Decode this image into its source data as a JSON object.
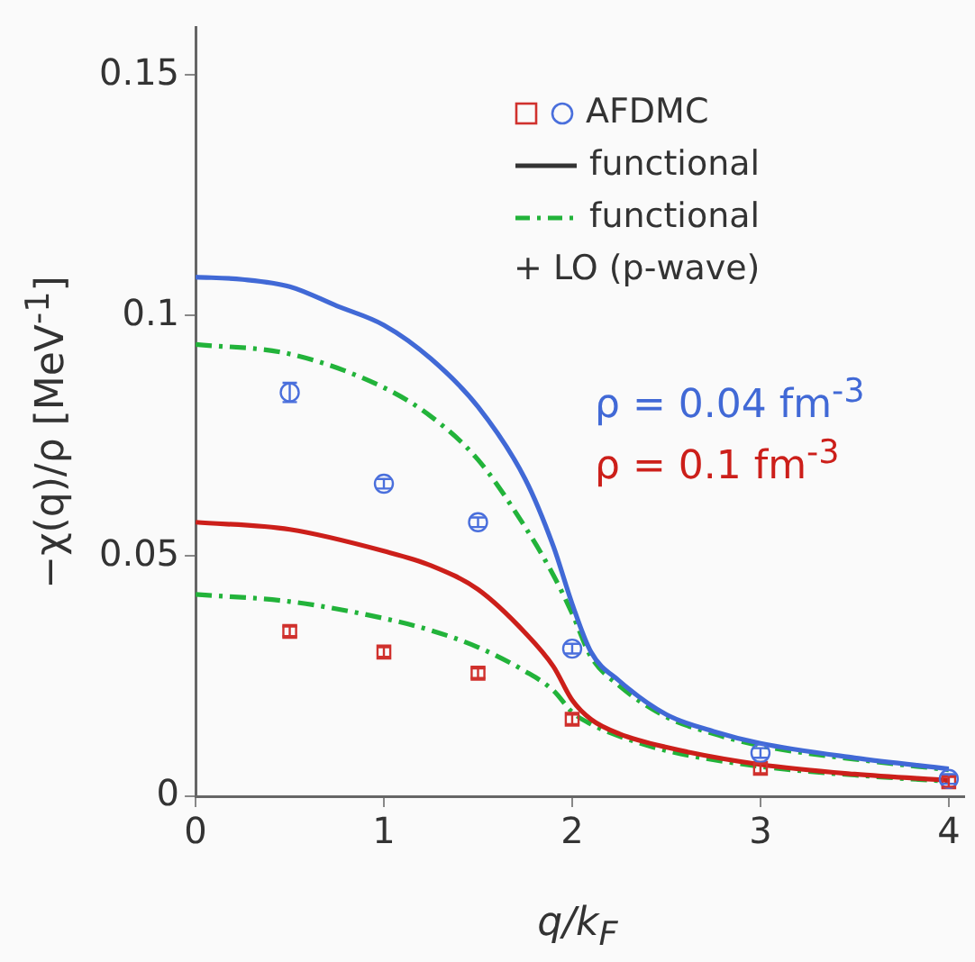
{
  "chart_data": {
    "type": "line",
    "xlabel": "q/k$_{F}$",
    "ylabel": "−χ(q)/ρ [MeV$^{-1}$]",
    "xlim": [
      0,
      4.08
    ],
    "ylim": [
      0,
      0.16
    ],
    "xticks": [
      0,
      1,
      2,
      3,
      4
    ],
    "yticks": [
      0,
      0.05,
      0.1,
      0.15
    ],
    "legend": "top right",
    "annotations": [
      "functional",
      "functional",
      "+ LO (p-wave)",
      "ρ = 0.04 fm$^{-3}$",
      "ρ = 0.1 fm$^{-3}$"
    ],
    "series": [
      {
        "type": "scatter",
        "name": "AFDMC",
        "marker": "circle",
        "color": "#4a6fdc",
        "x": [
          0.5,
          1,
          1.5,
          2,
          3,
          4
        ],
        "values": [
          0.084,
          0.065,
          0.057,
          0.0307,
          0.009,
          0.0036
        ],
        "errors": [
          0.002,
          0.001,
          0.001,
          0.001,
          0.001,
          0.001
        ]
      },
      {
        "type": "scatter",
        "marker": "square",
        "color": "#d0312d",
        "x": [
          0.5,
          1,
          1.5,
          2,
          3,
          4
        ],
        "values": [
          0.0343,
          0.03,
          0.0256,
          0.016,
          0.0058,
          0.003
        ],
        "errors": [
          0.001,
          0.001,
          0.001,
          0.001,
          0.001,
          0.001
        ]
      },
      {
        "line_style": "solid",
        "color": "#4169d6",
        "x": [
          0,
          0.25,
          0.5,
          0.75,
          1,
          1.25,
          1.5,
          1.75,
          1.9,
          2,
          2.1,
          2.25,
          2.5,
          2.75,
          3,
          3.5,
          4
        ],
        "values": [
          0.108,
          0.1075,
          0.106,
          0.102,
          0.098,
          0.091,
          0.081,
          0.066,
          0.052,
          0.04,
          0.03,
          0.024,
          0.017,
          0.0135,
          0.011,
          0.008,
          0.0057
        ]
      },
      {
        "line_style": "dashdot",
        "color": "#22b33a",
        "x": [
          0,
          0.5,
          1,
          1.25,
          1.5,
          1.75,
          1.9,
          2,
          2.1,
          2.25,
          2.5,
          2.75,
          3,
          3.5,
          4
        ],
        "values": [
          0.094,
          0.092,
          0.085,
          0.079,
          0.07,
          0.056,
          0.046,
          0.038,
          0.029,
          0.023,
          0.0165,
          0.013,
          0.0105,
          0.0077,
          0.0055
        ]
      },
      {
        "line_style": "solid",
        "color": "#cc1f1a",
        "x": [
          0,
          0.5,
          1,
          1.25,
          1.5,
          1.75,
          1.9,
          2,
          2.1,
          2.25,
          2.5,
          3,
          3.5,
          4
        ],
        "values": [
          0.057,
          0.0555,
          0.051,
          0.048,
          0.043,
          0.034,
          0.027,
          0.02,
          0.016,
          0.013,
          0.0102,
          0.0066,
          0.0046,
          0.0033
        ]
      },
      {
        "line_style": "dashdot",
        "color": "#22b33a",
        "x": [
          0,
          0.5,
          1,
          1.25,
          1.5,
          1.75,
          1.9,
          2,
          2.1,
          2.25,
          2.5,
          3,
          3.5,
          4
        ],
        "values": [
          0.042,
          0.0405,
          0.037,
          0.0345,
          0.031,
          0.026,
          0.022,
          0.0175,
          0.015,
          0.0125,
          0.0095,
          0.0062,
          0.0044,
          0.0031
        ]
      }
    ]
  }
}
